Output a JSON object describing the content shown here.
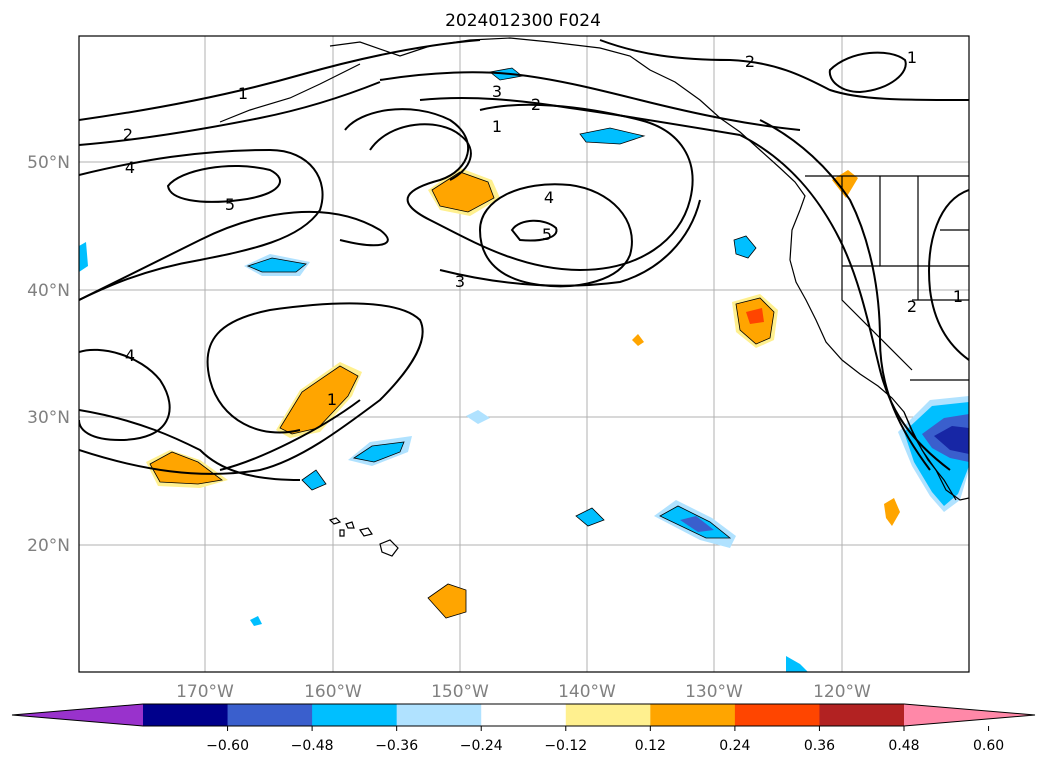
{
  "title": "2024012300 F024",
  "axes": {
    "lat_labels": [
      "20°N",
      "30°N",
      "40°N",
      "50°N"
    ],
    "lon_labels": [
      "170°W",
      "160°W",
      "150°W",
      "140°W",
      "130°W",
      "120°W"
    ]
  },
  "colorbar": {
    "colors": [
      "#9932cc",
      "#00008b",
      "#3a5fcd",
      "#00bfff",
      "#b0e2ff",
      "#ffffff",
      "#fff08f",
      "#ffa500",
      "#ff4500",
      "#b22222",
      "#ff88a8"
    ],
    "tick_labels": [
      "−0.60",
      "−0.48",
      "−0.36",
      "−0.24",
      "−0.12",
      "0.12",
      "0.24",
      "0.36",
      "0.48",
      "0.60"
    ]
  },
  "contour_labels": [
    "1",
    "2",
    "4",
    "5",
    "3",
    "1",
    "2",
    "4",
    "5",
    "3",
    "4",
    "1",
    "2",
    "1",
    "2",
    "1"
  ]
}
